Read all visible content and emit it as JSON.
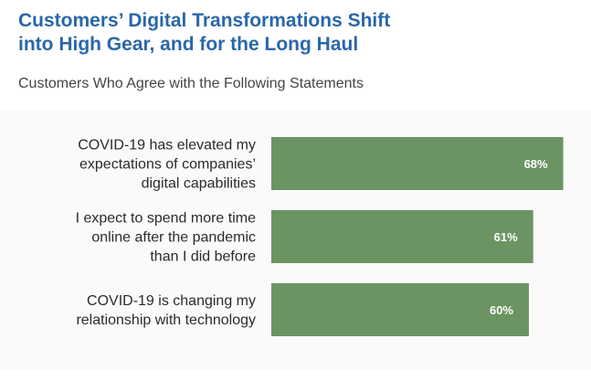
{
  "page": {
    "title_line_1": "Customers’ Digital Transformations Shift",
    "title_line_2": "into High Gear, and for the Long Haul",
    "subtitle": "Customers Who Agree with the Following Statements"
  },
  "colors": {
    "title": "#2a67a8",
    "bar": "#6b9462",
    "label": "#2b2b2b",
    "value_label": "#ffffff"
  },
  "chart_data": {
    "type": "bar",
    "orientation": "horizontal",
    "title": "Customers’ Digital Transformations Shift into High Gear, and for the Long Haul",
    "subtitle": "Customers Who Agree with the Following Statements",
    "categories": [
      [
        "COVID-19 has elevated my",
        "expectations of companies’",
        "digital capabilities"
      ],
      [
        "I expect to spend more time",
        "online after the pandemic",
        "than I did before"
      ],
      [
        "COVID-19 is changing my",
        "relationship with technology"
      ]
    ],
    "values": [
      68,
      61,
      60
    ],
    "value_labels": [
      "68%",
      "61%",
      "60%"
    ],
    "xlim": [
      0,
      100
    ],
    "grid": false,
    "legend": "none"
  }
}
